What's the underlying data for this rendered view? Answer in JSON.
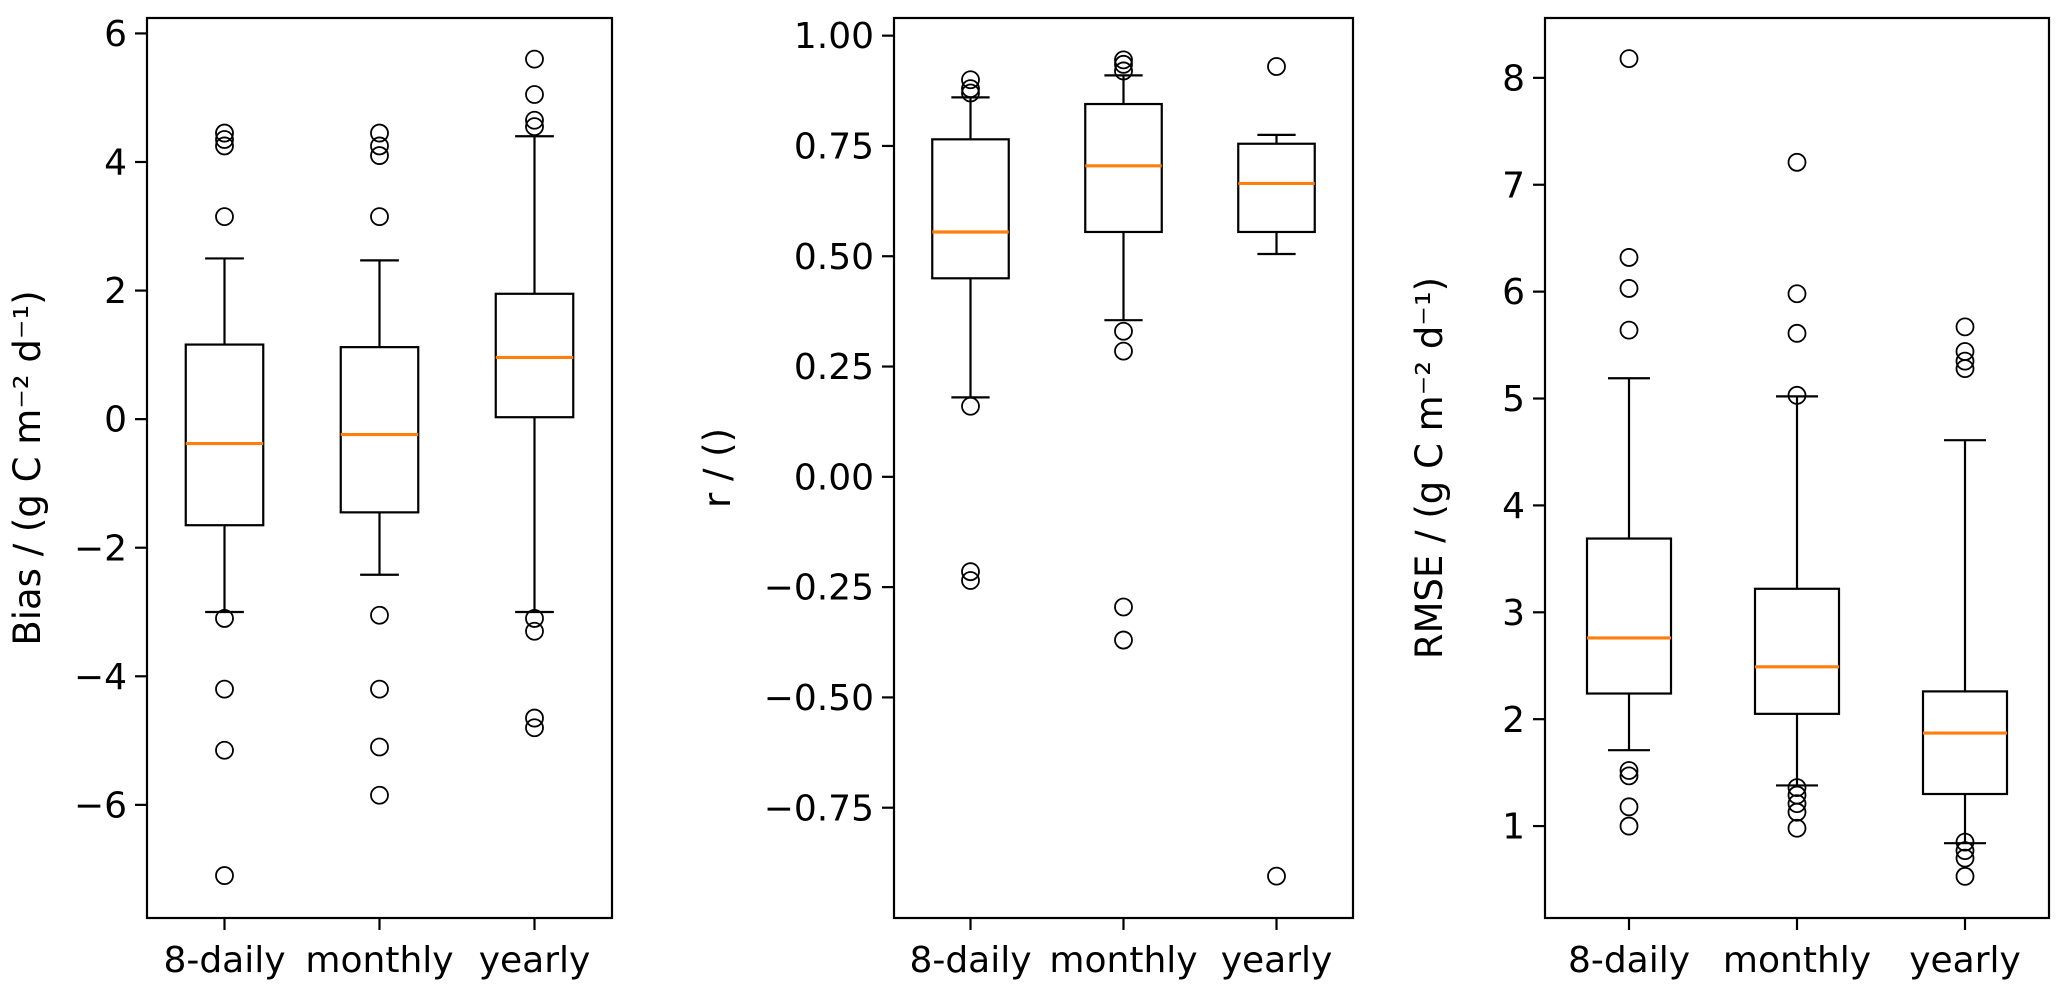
{
  "figure": {
    "background": "#ffffff",
    "description": "Three box-and-whisker plots comparing Bias, correlation r and RMSE across 8-daily, monthly and yearly aggregation"
  },
  "colors": {
    "box_line": "#000000",
    "median_line": "#ff7f0e",
    "axis_line": "#000000",
    "text": "#000000"
  },
  "chart_data": [
    {
      "type": "boxplot",
      "name": "bias",
      "title": "",
      "xlabel": "",
      "ylabel": "Bias / (g C m⁻² d⁻¹)",
      "categories": [
        "8-daily",
        "monthly",
        "yearly"
      ],
      "ylim": [
        -7.76,
        6.24
      ],
      "grid": false,
      "legend": "none",
      "yticks": [
        {
          "value": -6,
          "label": "−6"
        },
        {
          "value": -4,
          "label": "−4"
        },
        {
          "value": -2,
          "label": "−2"
        },
        {
          "value": 0,
          "label": "0"
        },
        {
          "value": 2,
          "label": "2"
        },
        {
          "value": 4,
          "label": "4"
        },
        {
          "value": 6,
          "label": "6"
        }
      ],
      "boxes": [
        {
          "category": "8-daily",
          "whislo": -3.0,
          "q1": -1.65,
          "med": -0.38,
          "q3": 1.16,
          "whishi": 2.5,
          "fliers": [
            4.45,
            4.35,
            4.25,
            3.15,
            -3.1,
            -4.2,
            -5.15,
            -7.1
          ]
        },
        {
          "category": "monthly",
          "whislo": -2.42,
          "q1": -1.45,
          "med": -0.24,
          "q3": 1.12,
          "whishi": 2.47,
          "fliers": [
            4.45,
            4.25,
            4.1,
            3.15,
            -3.05,
            -4.2,
            -5.1,
            -5.85
          ]
        },
        {
          "category": "yearly",
          "whislo": -3.0,
          "q1": 0.03,
          "med": 0.96,
          "q3": 1.95,
          "whishi": 4.4,
          "fliers": [
            5.6,
            5.05,
            4.65,
            4.55,
            -3.1,
            -3.3,
            -4.65,
            -4.8
          ]
        }
      ]
    },
    {
      "type": "boxplot",
      "name": "correlation",
      "title": "",
      "xlabel": "",
      "ylabel": "r / ()",
      "categories": [
        "8-daily",
        "monthly",
        "yearly"
      ],
      "ylim": [
        -1.0,
        1.04
      ],
      "grid": false,
      "legend": "none",
      "yticks": [
        {
          "value": -0.75,
          "label": "−0.75"
        },
        {
          "value": -0.5,
          "label": "−0.50"
        },
        {
          "value": -0.25,
          "label": "−0.25"
        },
        {
          "value": 0.0,
          "label": "0.00"
        },
        {
          "value": 0.25,
          "label": "0.25"
        },
        {
          "value": 0.5,
          "label": "0.50"
        },
        {
          "value": 0.75,
          "label": "0.75"
        },
        {
          "value": 1.0,
          "label": "1.00"
        }
      ],
      "boxes": [
        {
          "category": "8-daily",
          "whislo": 0.18,
          "q1": 0.45,
          "med": 0.555,
          "q3": 0.765,
          "whishi": 0.86,
          "fliers": [
            0.9,
            0.88,
            0.87,
            0.16,
            -0.215,
            -0.235
          ]
        },
        {
          "category": "monthly",
          "whislo": 0.355,
          "q1": 0.555,
          "med": 0.705,
          "q3": 0.845,
          "whishi": 0.91,
          "fliers": [
            0.945,
            0.935,
            0.92,
            0.33,
            0.285,
            -0.295,
            -0.37
          ]
        },
        {
          "category": "yearly",
          "whislo": 0.505,
          "q1": 0.555,
          "med": 0.665,
          "q3": 0.755,
          "whishi": 0.775,
          "fliers": [
            0.93,
            -0.905
          ]
        }
      ]
    },
    {
      "type": "boxplot",
      "name": "rmse",
      "title": "",
      "xlabel": "",
      "ylabel": "RMSE / (g C m⁻² d⁻¹)",
      "categories": [
        "8-daily",
        "monthly",
        "yearly"
      ],
      "ylim": [
        0.14,
        8.56
      ],
      "grid": false,
      "legend": "none",
      "yticks": [
        {
          "value": 1,
          "label": "1"
        },
        {
          "value": 2,
          "label": "2"
        },
        {
          "value": 3,
          "label": "3"
        },
        {
          "value": 4,
          "label": "4"
        },
        {
          "value": 5,
          "label": "5"
        },
        {
          "value": 6,
          "label": "6"
        },
        {
          "value": 7,
          "label": "7"
        },
        {
          "value": 8,
          "label": "8"
        }
      ],
      "boxes": [
        {
          "category": "8-daily",
          "whislo": 1.71,
          "q1": 2.24,
          "med": 2.76,
          "q3": 3.69,
          "whishi": 5.19,
          "fliers": [
            8.18,
            6.32,
            6.03,
            5.64,
            1.52,
            1.47,
            1.18,
            1.0
          ]
        },
        {
          "category": "monthly",
          "whislo": 1.38,
          "q1": 2.05,
          "med": 2.49,
          "q3": 3.22,
          "whishi": 5.02,
          "fliers": [
            7.21,
            5.98,
            5.61,
            5.03,
            1.36,
            1.29,
            1.21,
            1.13,
            0.98
          ]
        },
        {
          "category": "yearly",
          "whislo": 0.84,
          "q1": 1.3,
          "med": 1.87,
          "q3": 2.26,
          "whishi": 4.61,
          "fliers": [
            5.67,
            5.44,
            5.35,
            5.28,
            0.85,
            0.77,
            0.7,
            0.53
          ]
        }
      ]
    }
  ]
}
